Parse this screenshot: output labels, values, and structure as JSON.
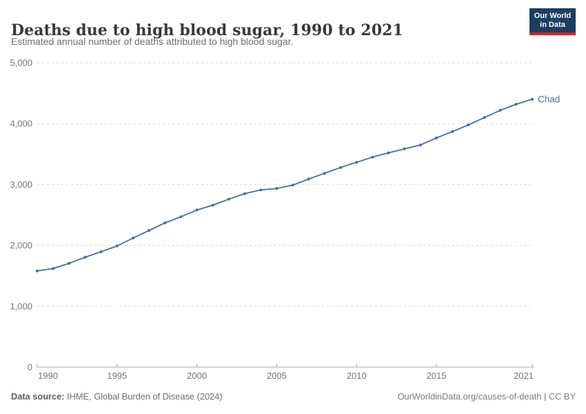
{
  "header": {
    "title": "Deaths due to high blood sugar, 1990 to 2021",
    "subtitle": "Estimated annual number of deaths attributed to high blood sugar.",
    "logo": {
      "line1": "Our World",
      "line2": "in Data"
    }
  },
  "chart_data": {
    "type": "line",
    "title": "Deaths due to high blood sugar, 1990 to 2021",
    "subtitle": "Estimated annual number of deaths attributed to high blood sugar.",
    "xlim": [
      1990,
      2021
    ],
    "ylim": [
      0,
      5000
    ],
    "x_ticks": [
      1990,
      1995,
      2000,
      2005,
      2010,
      2015,
      2021
    ],
    "y_ticks": [
      0,
      1000,
      2000,
      3000,
      4000,
      5000
    ],
    "y_tick_labels": [
      "0",
      "1,000",
      "2,000",
      "3,000",
      "4,000",
      "5,000"
    ],
    "grid": "horizontal-dashed",
    "legend_position": "end-of-line-label",
    "end_label": "Chad",
    "series": [
      {
        "name": "Chad",
        "color": "#4c6a9c",
        "x": [
          1990,
          1991,
          1992,
          1993,
          1994,
          1995,
          1996,
          1997,
          1998,
          1999,
          2000,
          2001,
          2002,
          2003,
          2004,
          2005,
          2006,
          2007,
          2008,
          2009,
          2010,
          2011,
          2012,
          2013,
          2014,
          2015,
          2016,
          2017,
          2018,
          2019,
          2020,
          2021
        ],
        "values": [
          1580,
          1620,
          1705,
          1805,
          1895,
          1990,
          2120,
          2245,
          2370,
          2470,
          2580,
          2660,
          2760,
          2850,
          2910,
          2935,
          2990,
          3090,
          3185,
          3280,
          3365,
          3450,
          3520,
          3585,
          3650,
          3765,
          3870,
          3980,
          4100,
          4220,
          4320,
          4400
        ]
      }
    ]
  },
  "footer": {
    "datasource_label": "Data source:",
    "datasource_value": " IHME, Global Burden of Disease (2024)",
    "attribution": "OurWorldinData.org/causes-of-death | CC BY"
  },
  "colors": {
    "line": "#4c6a9c",
    "grid": "#dadada",
    "axis": "#a8a8a8",
    "tick_text": "#757575",
    "logo_bg": "#1d3d63",
    "logo_red": "#d0281e",
    "title_text": "#383838",
    "subtitle_text": "#6d6d6d"
  }
}
